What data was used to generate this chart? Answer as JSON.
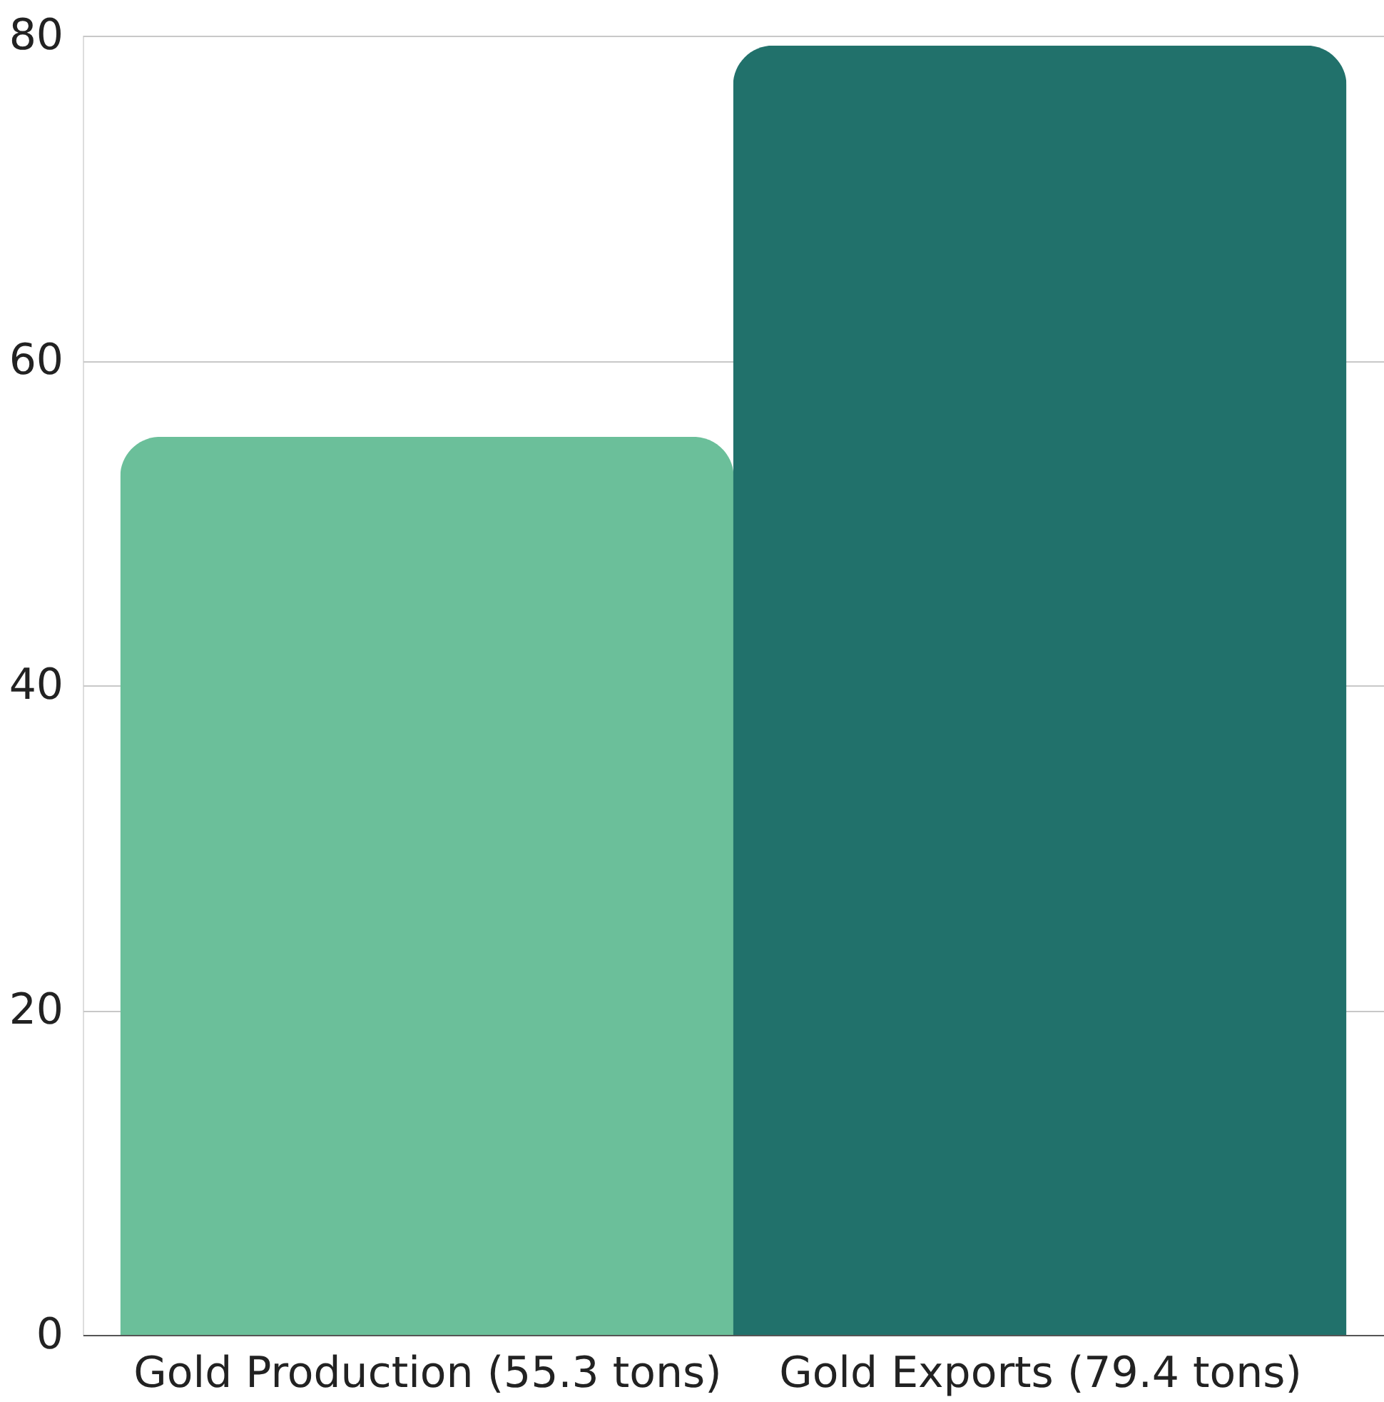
{
  "chart_data": {
    "type": "bar",
    "categories": [
      "Gold Production (55.3 tons)",
      "Gold Exports (79.4 tons)"
    ],
    "values": [
      55.3,
      79.4
    ],
    "colors": [
      "#6bbf9a",
      "#21716b"
    ],
    "ylim": [
      0,
      80
    ],
    "yticks": [
      0,
      20,
      40,
      60,
      80
    ],
    "grid": "y",
    "legend": false
  }
}
